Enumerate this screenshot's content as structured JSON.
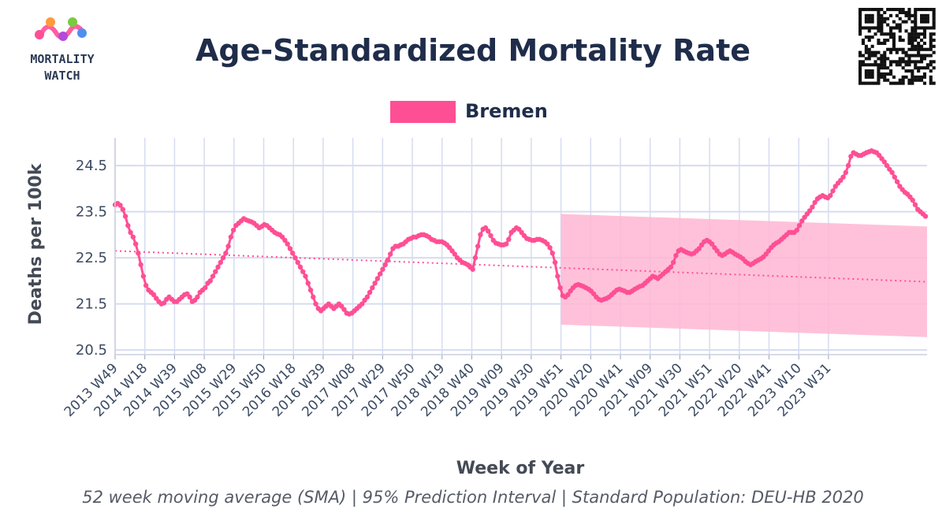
{
  "header": {
    "title": "Age-Standardized Mortality Rate",
    "logo_line1": "MORTALITY",
    "logo_line2": "WATCH"
  },
  "footer": {
    "note": "52 week moving average (SMA) | 95% Prediction Interval | Standard Population: DEU-HB 2020"
  },
  "colors": {
    "series": "#ff4f94",
    "band": "#ffb6d2",
    "grid": "#d6dcf0",
    "title": "#1f2d4a"
  },
  "chart_data": {
    "type": "line",
    "title": "Age-Standardized Mortality Rate",
    "xlabel": "Week of Year",
    "ylabel": "Deaths per 100k",
    "ylim": [
      20.4,
      25.1
    ],
    "yticks": [
      20.5,
      21.5,
      22.5,
      23.5,
      24.5
    ],
    "grid": true,
    "legend": "top-center",
    "x_categories": [
      "2013 W49",
      "2014 W18",
      "2014 W39",
      "2015 W08",
      "2015 W29",
      "2015 W50",
      "2016 W18",
      "2016 W39",
      "2017 W08",
      "2017 W29",
      "2017 W50",
      "2018 W19",
      "2018 W40",
      "2019 W09",
      "2019 W30",
      "2019 W51",
      "2020 W20",
      "2020 W41",
      "2021 W09",
      "2021 W30",
      "2021 W51",
      "2022 W20",
      "2022 W41",
      "2023 W10",
      "2023 W31"
    ],
    "series": [
      {
        "name": "Bremen",
        "x_start": "2013 W49",
        "values_weekly": [
          23.65,
          23.68,
          23.64,
          23.55,
          23.4,
          23.2,
          23.05,
          22.95,
          22.8,
          22.6,
          22.35,
          22.1,
          21.9,
          21.8,
          21.75,
          21.7,
          21.62,
          21.55,
          21.5,
          21.52,
          21.6,
          21.65,
          21.6,
          21.55,
          21.55,
          21.6,
          21.65,
          21.7,
          21.72,
          21.65,
          21.55,
          21.58,
          21.65,
          21.75,
          21.8,
          21.85,
          21.95,
          22.0,
          22.1,
          22.2,
          22.3,
          22.4,
          22.5,
          22.6,
          22.75,
          22.95,
          23.1,
          23.2,
          23.25,
          23.3,
          23.35,
          23.32,
          23.3,
          23.28,
          23.25,
          23.2,
          23.15,
          23.18,
          23.22,
          23.2,
          23.15,
          23.1,
          23.05,
          23.02,
          23.0,
          22.95,
          22.88,
          22.8,
          22.7,
          22.6,
          22.5,
          22.4,
          22.3,
          22.2,
          22.1,
          21.95,
          21.8,
          21.65,
          21.5,
          21.4,
          21.35,
          21.4,
          21.45,
          21.5,
          21.45,
          21.4,
          21.45,
          21.5,
          21.45,
          21.38,
          21.3,
          21.28,
          21.3,
          21.35,
          21.4,
          21.45,
          21.5,
          21.58,
          21.65,
          21.75,
          21.85,
          21.95,
          22.05,
          22.15,
          22.25,
          22.35,
          22.45,
          22.58,
          22.7,
          22.75,
          22.75,
          22.78,
          22.8,
          22.85,
          22.9,
          22.92,
          22.95,
          22.95,
          22.98,
          23.0,
          23.0,
          22.98,
          22.95,
          22.9,
          22.88,
          22.85,
          22.85,
          22.85,
          22.82,
          22.78,
          22.72,
          22.65,
          22.58,
          22.5,
          22.45,
          22.4,
          22.38,
          22.35,
          22.3,
          22.25,
          22.5,
          22.75,
          23.0,
          23.12,
          23.15,
          23.08,
          22.98,
          22.88,
          22.82,
          22.8,
          22.78,
          22.78,
          22.8,
          22.9,
          23.05,
          23.1,
          23.15,
          23.12,
          23.05,
          22.98,
          22.92,
          22.9,
          22.88,
          22.88,
          22.9,
          22.9,
          22.88,
          22.85,
          22.8,
          22.72,
          22.6,
          22.4,
          22.1,
          21.85,
          21.68,
          21.65,
          21.7,
          21.78,
          21.85,
          21.9,
          21.92,
          21.9,
          21.88,
          21.85,
          21.82,
          21.78,
          21.72,
          21.65,
          21.6,
          21.58,
          21.6,
          21.62,
          21.65,
          21.7,
          21.75,
          21.8,
          21.82,
          21.8,
          21.78,
          21.75,
          21.75,
          21.78,
          21.82,
          21.85,
          21.88,
          21.9,
          21.95,
          22.0,
          22.05,
          22.1,
          22.08,
          22.05,
          22.1,
          22.15,
          22.2,
          22.25,
          22.3,
          22.4,
          22.55,
          22.65,
          22.68,
          22.65,
          22.62,
          22.6,
          22.58,
          22.6,
          22.65,
          22.7,
          22.78,
          22.85,
          22.88,
          22.85,
          22.8,
          22.72,
          22.65,
          22.58,
          22.55,
          22.58,
          22.62,
          22.65,
          22.62,
          22.58,
          22.55,
          22.52,
          22.48,
          22.42,
          22.38,
          22.35,
          22.38,
          22.42,
          22.45,
          22.48,
          22.52,
          22.58,
          22.65,
          22.72,
          22.78,
          22.82,
          22.85,
          22.9,
          22.95,
          23.0,
          23.05,
          23.05,
          23.05,
          23.1,
          23.2,
          23.3,
          23.38,
          23.45,
          23.52,
          23.6,
          23.7,
          23.78,
          23.82,
          23.85,
          23.82,
          23.8,
          23.85,
          23.95,
          24.05,
          24.12,
          24.18,
          24.25,
          24.35,
          24.5,
          24.7,
          24.78,
          24.75,
          24.72,
          24.72,
          24.75,
          24.78,
          24.8,
          24.82,
          24.8,
          24.78,
          24.72,
          24.65,
          24.58,
          24.5,
          24.42,
          24.35,
          24.25,
          24.15,
          24.05,
          23.98,
          23.92,
          23.88,
          23.82,
          23.75,
          23.65,
          23.55,
          23.5,
          23.45,
          23.4
        ]
      }
    ],
    "baseline": {
      "style": "dotted",
      "start_value": 22.65,
      "end_value": 21.98
    },
    "prediction_interval": {
      "start_x": "2019 W51",
      "upper_start": 23.45,
      "upper_end": 23.18,
      "lower_start": 21.05,
      "lower_end": 20.78
    }
  }
}
